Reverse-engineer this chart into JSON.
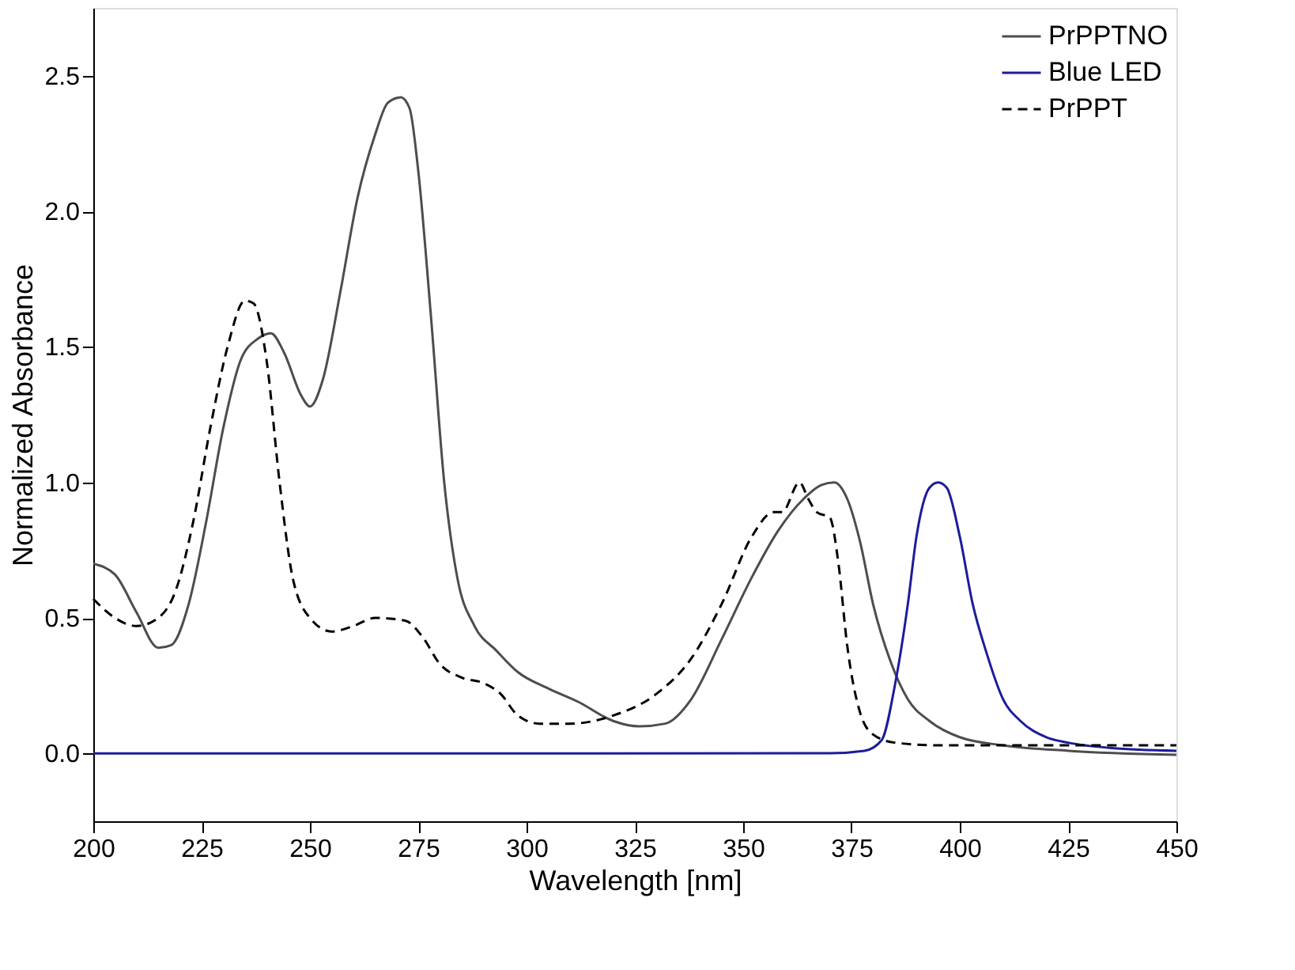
{
  "chart_data": {
    "type": "line",
    "xlabel": "Wavelength [nm]",
    "ylabel": "Normalized Absorbance",
    "xlim": [
      200,
      450
    ],
    "xticks": [
      200,
      225,
      250,
      275,
      300,
      325,
      350,
      375,
      400,
      425,
      450
    ],
    "ylim": [
      -0.25,
      2.75
    ],
    "yticks": [
      {
        "value": 0,
        "label": "0.0"
      },
      {
        "value": 0.5,
        "label": "0.5"
      },
      {
        "value": 1,
        "label": "1.0"
      },
      {
        "value": 1.5,
        "label": "1.5"
      },
      {
        "value": 2,
        "label": "2.0"
      },
      {
        "value": 2.5,
        "label": "2.5"
      }
    ],
    "grid": false,
    "legend": "top right",
    "marker": "none",
    "series": [
      {
        "name": "PrPPTNO",
        "color": "#4d4d4d",
        "line_style": "solid",
        "x": [
          200,
          205,
          210,
          215,
          218,
          222,
          226,
          230,
          234,
          238,
          241,
          244,
          248,
          250,
          253,
          257,
          261,
          265,
          268,
          271,
          273,
          275,
          278,
          281,
          284,
          288,
          293,
          298,
          305,
          312,
          320,
          326,
          332,
          338,
          345,
          352,
          358,
          364,
          368,
          371,
          374,
          377,
          380,
          384,
          388,
          393,
          400,
          410,
          425,
          450
        ],
        "values": [
          0.7,
          0.66,
          0.52,
          0.39,
          0.4,
          0.55,
          0.85,
          1.2,
          1.45,
          1.53,
          1.55,
          1.48,
          1.32,
          1.28,
          1.38,
          1.7,
          2.05,
          2.28,
          2.4,
          2.42,
          2.38,
          2.15,
          1.6,
          1.0,
          0.65,
          0.47,
          0.38,
          0.3,
          0.24,
          0.19,
          0.12,
          0.1,
          0.11,
          0.2,
          0.42,
          0.65,
          0.82,
          0.94,
          0.99,
          1.0,
          0.94,
          0.78,
          0.55,
          0.34,
          0.2,
          0.12,
          0.06,
          0.03,
          0.01,
          -0.005
        ]
      },
      {
        "name": "Blue LED",
        "color": "#1c1c9c",
        "line_style": "solid",
        "x": [
          200,
          370,
          378,
          382,
          385,
          388,
          390,
          393,
          395,
          397,
          400,
          403,
          406,
          410,
          414,
          420,
          425,
          435,
          450
        ],
        "values": [
          0,
          0.001,
          0.01,
          0.05,
          0.25,
          0.55,
          0.8,
          0.98,
          1.0,
          0.98,
          0.8,
          0.55,
          0.38,
          0.2,
          0.12,
          0.06,
          0.04,
          0.02,
          0.01
        ]
      },
      {
        "name": "PrPPT",
        "color": "#000000",
        "line_style": "dashed",
        "x": [
          200,
          205,
          210,
          215,
          219,
          223,
          227,
          231,
          235,
          237,
          240,
          243,
          246,
          250,
          255,
          260,
          265,
          272,
          276,
          280,
          285,
          290,
          294,
          298,
          303,
          310,
          320,
          330,
          338,
          345,
          352,
          357,
          359,
          363,
          365,
          367,
          370,
          372,
          374,
          377,
          380,
          385,
          395,
          410,
          450
        ],
        "values": [
          0.57,
          0.5,
          0.47,
          0.5,
          0.6,
          0.85,
          1.2,
          1.5,
          1.67,
          1.66,
          1.45,
          1.0,
          0.65,
          0.5,
          0.45,
          0.47,
          0.5,
          0.49,
          0.43,
          0.33,
          0.28,
          0.26,
          0.22,
          0.14,
          0.11,
          0.11,
          0.14,
          0.22,
          0.35,
          0.55,
          0.8,
          0.89,
          0.89,
          1.0,
          0.94,
          0.89,
          0.87,
          0.7,
          0.4,
          0.15,
          0.07,
          0.04,
          0.03,
          0.03,
          0.03
        ]
      }
    ]
  }
}
